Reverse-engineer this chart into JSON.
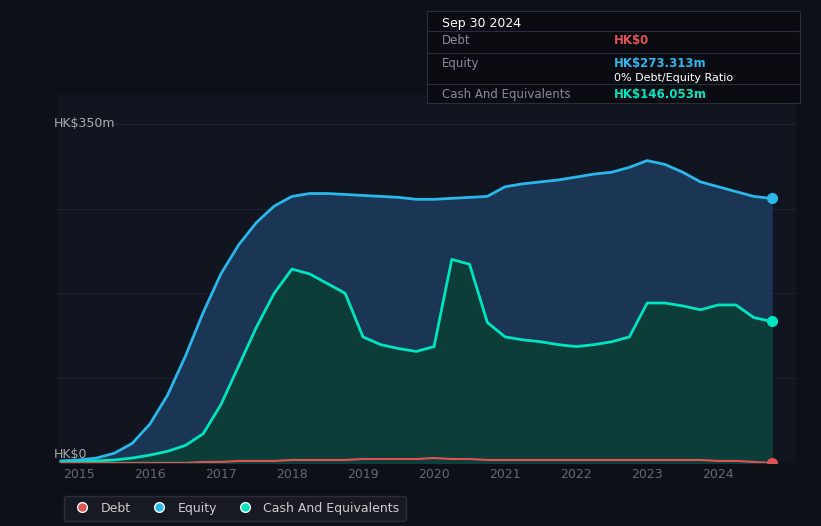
{
  "bg_color": "#0d1117",
  "plot_bg_color": "#111520",
  "grid_color": "#1e2230",
  "title_box": {
    "date": "Sep 30 2024",
    "debt_label": "Debt",
    "debt_value": "HK$0",
    "equity_label": "Equity",
    "equity_value": "HK$273.313m",
    "ratio_value": "0% Debt/Equity Ratio",
    "cash_label": "Cash And Equivalents",
    "cash_value": "HK$146.053m"
  },
  "ylabel_top": "HK$350m",
  "ylabel_bottom": "HK$0",
  "x_years": [
    2014.75,
    2015.0,
    2015.25,
    2015.5,
    2015.75,
    2016.0,
    2016.25,
    2016.5,
    2016.75,
    2017.0,
    2017.25,
    2017.5,
    2017.75,
    2018.0,
    2018.25,
    2018.5,
    2018.75,
    2019.0,
    2019.25,
    2019.5,
    2019.75,
    2020.0,
    2020.25,
    2020.5,
    2020.75,
    2021.0,
    2021.25,
    2021.5,
    2021.75,
    2022.0,
    2022.25,
    2022.5,
    2022.75,
    2023.0,
    2023.25,
    2023.5,
    2023.75,
    2024.0,
    2024.25,
    2024.5,
    2024.75
  ],
  "equity": [
    2,
    3,
    5,
    10,
    20,
    40,
    70,
    110,
    155,
    195,
    225,
    248,
    265,
    275,
    278,
    278,
    277,
    276,
    275,
    274,
    272,
    272,
    273,
    274,
    275,
    285,
    288,
    290,
    292,
    295,
    298,
    300,
    305,
    312,
    308,
    300,
    290,
    285,
    280,
    275,
    273
  ],
  "cash": [
    1,
    1,
    2,
    3,
    5,
    8,
    12,
    18,
    30,
    60,
    100,
    140,
    175,
    200,
    195,
    185,
    175,
    130,
    122,
    118,
    115,
    120,
    210,
    205,
    145,
    130,
    127,
    125,
    122,
    120,
    122,
    125,
    130,
    165,
    165,
    162,
    158,
    163,
    163,
    150,
    146
  ],
  "debt": [
    0,
    0,
    0,
    0,
    0,
    0,
    0,
    0,
    1,
    1,
    2,
    2,
    2,
    3,
    3,
    3,
    3,
    4,
    4,
    4,
    4,
    5,
    4,
    4,
    3,
    3,
    3,
    3,
    3,
    3,
    3,
    3,
    3,
    3,
    3,
    3,
    3,
    2,
    2,
    1,
    0
  ],
  "equity_color": "#2ab7ea",
  "equity_fill": "#1a3654",
  "cash_color": "#00e5c0",
  "cash_fill": "#0c3d38",
  "debt_color": "#e05252",
  "legend_items": [
    {
      "label": "Debt",
      "color": "#e05252"
    },
    {
      "label": "Equity",
      "color": "#2ab7ea"
    },
    {
      "label": "Cash And Equivalents",
      "color": "#00e5c0"
    }
  ],
  "xticks": [
    2015,
    2016,
    2017,
    2018,
    2019,
    2020,
    2021,
    2022,
    2023,
    2024
  ],
  "ylim": [
    0,
    380
  ],
  "xlim": [
    2014.7,
    2025.1
  ]
}
